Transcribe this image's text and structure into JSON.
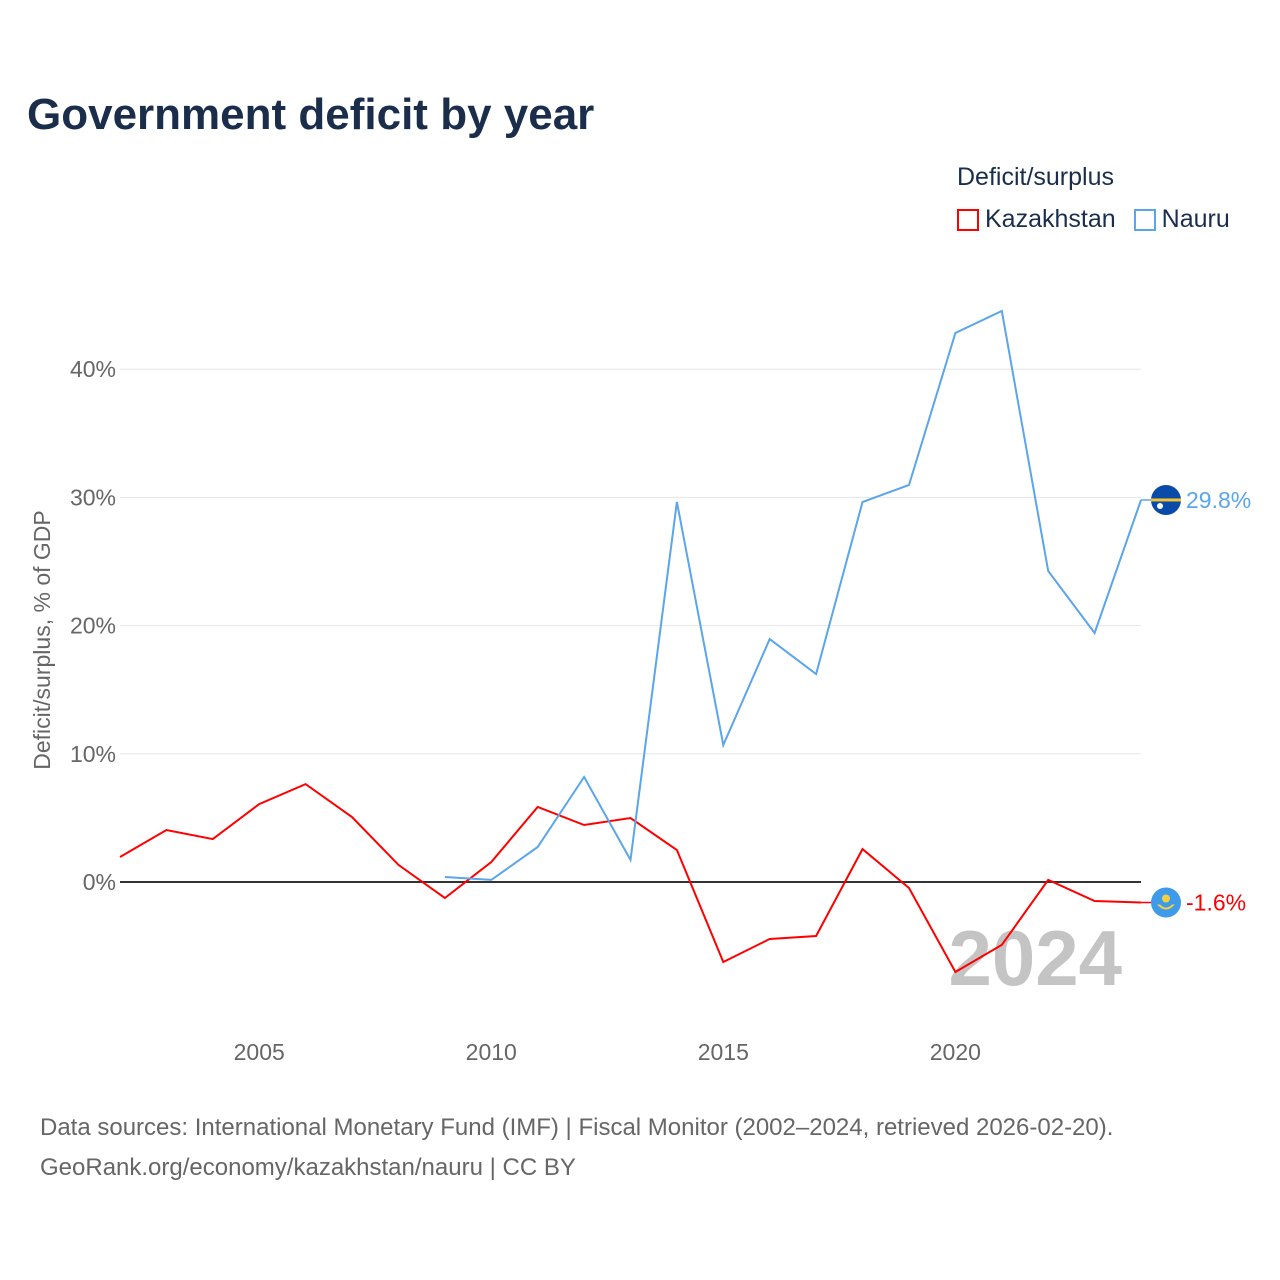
{
  "title": "Government deficit by year",
  "legend": {
    "title": "Deficit/surplus",
    "items": [
      {
        "name": "Kazakhstan",
        "color": "#ff0000"
      },
      {
        "name": "Nauru",
        "color": "#5aa5ec"
      }
    ]
  },
  "source_line1": "Data sources: International Monetary Fund (IMF) | Fiscal Monitor (2002–2024, retrieved 2026-02-20).",
  "source_line2": "GeoRank.org/economy/kazakhstan/nauru | CC BY",
  "chart_data": {
    "type": "line",
    "title": "Government deficit by year",
    "xlabel": "",
    "ylabel": "Deficit/surplus, % of GDP",
    "xlim": [
      2002,
      2024
    ],
    "ylim": [
      -10,
      47
    ],
    "x_ticks": [
      2005,
      2010,
      2015,
      2020
    ],
    "x_tick_labels": [
      "2005",
      "2010",
      "2015",
      "2020"
    ],
    "y_ticks": [
      0,
      10,
      20,
      30,
      40
    ],
    "y_tick_labels": [
      "0%",
      "10%",
      "20%",
      "30%",
      "40%"
    ],
    "grid": true,
    "watermark_year": "2024",
    "series": [
      {
        "name": "Kazakhstan",
        "color": "#ff0000",
        "end_label": "-1.6%",
        "x": [
          2002,
          2003,
          2004,
          2005,
          2006,
          2007,
          2008,
          2009,
          2010,
          2011,
          2012,
          2013,
          2014,
          2015,
          2016,
          2017,
          2018,
          2019,
          2020,
          2021,
          2022,
          2023,
          2024
        ],
        "values": [
          1.95,
          4.06,
          3.35,
          6.08,
          7.64,
          5.07,
          1.33,
          -1.25,
          1.56,
          5.85,
          4.45,
          4.99,
          2.5,
          -6.24,
          -4.45,
          -4.21,
          2.57,
          -0.47,
          -7.02,
          -4.91,
          0.16,
          -1.48,
          -1.6
        ]
      },
      {
        "name": "Nauru",
        "color": "#5aa5ec",
        "end_label": "29.8%",
        "x": [
          2009,
          2010,
          2011,
          2012,
          2013,
          2014,
          2015,
          2016,
          2017,
          2018,
          2019,
          2020,
          2021,
          2022,
          2023,
          2024
        ],
        "values": [
          0.39,
          0.16,
          2.73,
          8.19,
          1.72,
          29.64,
          10.69,
          18.95,
          16.22,
          29.64,
          30.97,
          42.82,
          44.54,
          24.26,
          19.42,
          29.8
        ]
      }
    ]
  }
}
